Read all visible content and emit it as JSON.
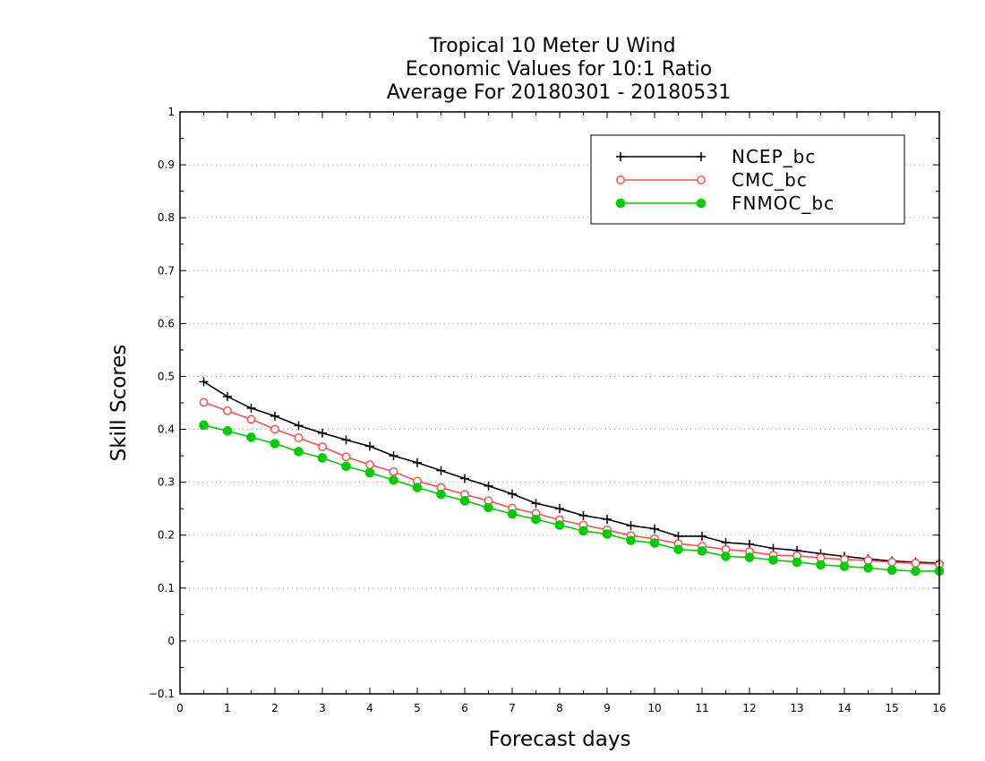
{
  "chart_data": {
    "type": "line",
    "title": [
      "Tropical 10 Meter U Wind",
      "Economic Values for 10:1 Ratio",
      "Average For 20180301 - 20180531"
    ],
    "xlabel": "Forecast days",
    "ylabel": "Skill Scores",
    "xlim": [
      0,
      16
    ],
    "ylim": [
      -0.1,
      1
    ],
    "xticks": [
      "0",
      "1",
      "2",
      "3",
      "4",
      "5",
      "6",
      "7",
      "8",
      "9",
      "10",
      "11",
      "12",
      "13",
      "14",
      "15",
      "16"
    ],
    "yticks": [
      "−0.1",
      "0",
      "0.1",
      "0.2",
      "0.3",
      "0.4",
      "0.5",
      "0.6",
      "0.7",
      "0.8",
      "0.9",
      "1"
    ],
    "grid": "horizontal dotted",
    "legend_position": "top-right",
    "x": [
      0.5,
      1,
      1.5,
      2,
      2.5,
      3,
      3.5,
      4,
      4.5,
      5,
      5.5,
      6,
      6.5,
      7,
      7.5,
      8,
      8.5,
      9,
      9.5,
      10,
      10.5,
      11,
      11.5,
      12,
      12.5,
      13,
      13.5,
      14,
      14.5,
      15,
      15.5,
      16
    ],
    "series": [
      {
        "name": "NCEP_bc",
        "color": "#000000",
        "marker": "plus",
        "values": [
          0.49,
          0.462,
          0.44,
          0.425,
          0.407,
          0.393,
          0.38,
          0.368,
          0.35,
          0.337,
          0.322,
          0.307,
          0.293,
          0.278,
          0.26,
          0.25,
          0.237,
          0.23,
          0.218,
          0.212,
          0.198,
          0.198,
          0.186,
          0.183,
          0.175,
          0.171,
          0.165,
          0.16,
          0.155,
          0.151,
          0.149,
          0.147
        ]
      },
      {
        "name": "CMC_bc",
        "color": "#ff4d4d",
        "marker": "open-circle",
        "values": [
          0.451,
          0.435,
          0.419,
          0.4,
          0.384,
          0.367,
          0.348,
          0.333,
          0.32,
          0.302,
          0.29,
          0.277,
          0.265,
          0.251,
          0.241,
          0.229,
          0.219,
          0.21,
          0.199,
          0.193,
          0.184,
          0.179,
          0.173,
          0.169,
          0.162,
          0.161,
          0.157,
          0.154,
          0.152,
          0.149,
          0.147,
          0.145
        ]
      },
      {
        "name": "FNMOC_bc",
        "color": "#00cc00",
        "marker": "filled-circle",
        "values": [
          0.408,
          0.397,
          0.385,
          0.373,
          0.358,
          0.346,
          0.33,
          0.318,
          0.304,
          0.29,
          0.277,
          0.265,
          0.252,
          0.24,
          0.23,
          0.219,
          0.208,
          0.202,
          0.19,
          0.185,
          0.173,
          0.17,
          0.16,
          0.158,
          0.153,
          0.149,
          0.144,
          0.141,
          0.138,
          0.134,
          0.132,
          0.132
        ]
      }
    ]
  }
}
